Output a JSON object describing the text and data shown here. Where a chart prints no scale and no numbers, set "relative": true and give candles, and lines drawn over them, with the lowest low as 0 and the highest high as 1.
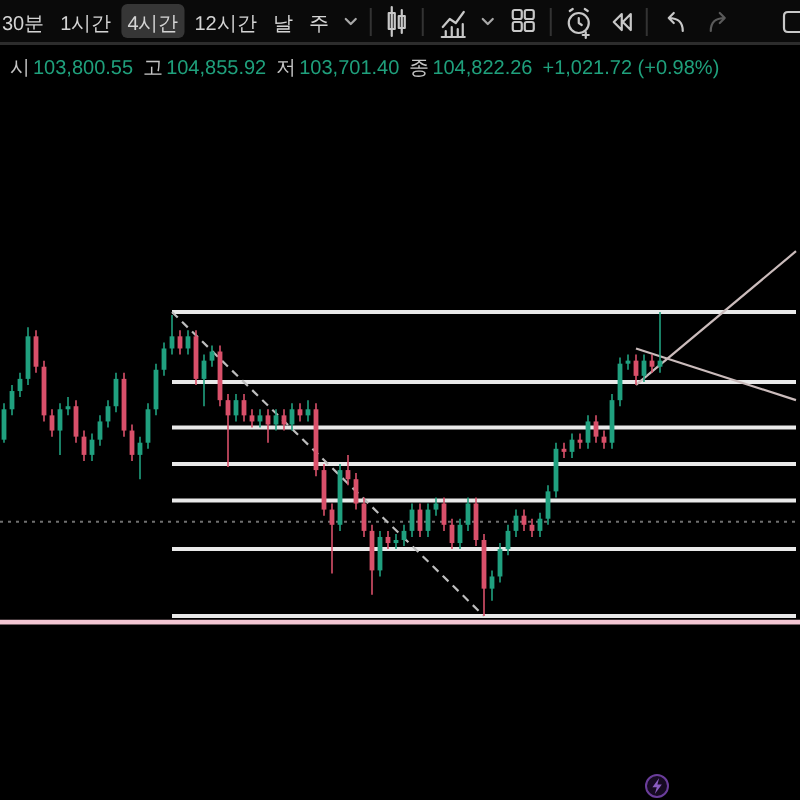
{
  "chart_data": {
    "type": "candlestick",
    "relative": true,
    "categories": [
      null,
      null,
      null,
      null,
      null,
      null,
      null,
      null,
      null,
      null,
      null,
      null,
      null,
      null,
      null,
      null,
      null,
      null,
      null,
      null,
      null,
      null,
      null,
      null,
      null,
      null,
      null,
      null,
      null,
      null,
      null,
      null,
      null,
      null,
      null,
      null,
      null,
      null,
      null,
      null,
      null,
      null,
      null,
      null,
      null,
      null,
      null,
      null,
      null,
      null,
      null,
      null,
      null,
      null,
      null,
      null,
      null,
      null,
      null,
      null,
      null,
      null,
      null,
      null,
      null,
      null,
      null,
      null,
      null,
      null,
      null,
      null,
      null,
      null,
      null,
      null,
      null,
      null,
      null,
      null,
      null,
      null,
      null,
      null,
      null,
      null,
      null,
      null,
      null,
      null,
      null,
      null,
      null,
      null,
      null,
      null,
      null,
      null,
      null,
      null
    ],
    "ohlc": [
      [
        0.58,
        0.7,
        0.57,
        0.68
      ],
      [
        0.68,
        0.76,
        0.66,
        0.74
      ],
      [
        0.74,
        0.8,
        0.72,
        0.78
      ],
      [
        0.78,
        0.95,
        0.76,
        0.92
      ],
      [
        0.92,
        0.94,
        0.8,
        0.82
      ],
      [
        0.82,
        0.84,
        0.64,
        0.66
      ],
      [
        0.66,
        0.68,
        0.59,
        0.61
      ],
      [
        0.61,
        0.7,
        0.53,
        0.68
      ],
      [
        0.68,
        0.72,
        0.66,
        0.69
      ],
      [
        0.69,
        0.71,
        0.57,
        0.59
      ],
      [
        0.59,
        0.61,
        0.51,
        0.53
      ],
      [
        0.53,
        0.6,
        0.51,
        0.58
      ],
      [
        0.58,
        0.66,
        0.56,
        0.64
      ],
      [
        0.64,
        0.71,
        0.62,
        0.69
      ],
      [
        0.69,
        0.8,
        0.67,
        0.78
      ],
      [
        0.78,
        0.8,
        0.59,
        0.61
      ],
      [
        0.61,
        0.63,
        0.51,
        0.53
      ],
      [
        0.53,
        0.59,
        0.45,
        0.57
      ],
      [
        0.57,
        0.7,
        0.55,
        0.68
      ],
      [
        0.68,
        0.83,
        0.66,
        0.81
      ],
      [
        0.81,
        0.9,
        0.79,
        0.88
      ],
      [
        0.88,
        0.99,
        0.86,
        0.92
      ],
      [
        0.92,
        0.94,
        0.86,
        0.88
      ],
      [
        0.88,
        0.94,
        0.86,
        0.92
      ],
      [
        0.92,
        0.94,
        0.76,
        0.78
      ],
      [
        0.78,
        0.86,
        0.69,
        0.84
      ],
      [
        0.84,
        0.89,
        0.82,
        0.87
      ],
      [
        0.87,
        0.89,
        0.69,
        0.71
      ],
      [
        0.71,
        0.73,
        0.49,
        0.66
      ],
      [
        0.66,
        0.73,
        0.64,
        0.71
      ],
      [
        0.71,
        0.73,
        0.64,
        0.66
      ],
      [
        0.66,
        0.68,
        0.62,
        0.64
      ],
      [
        0.64,
        0.68,
        0.62,
        0.66
      ],
      [
        0.66,
        0.68,
        0.57,
        0.63
      ],
      [
        0.63,
        0.68,
        0.61,
        0.66
      ],
      [
        0.66,
        0.68,
        0.61,
        0.63
      ],
      [
        0.63,
        0.7,
        0.61,
        0.68
      ],
      [
        0.68,
        0.7,
        0.64,
        0.66
      ],
      [
        0.66,
        0.71,
        0.64,
        0.68
      ],
      [
        0.68,
        0.7,
        0.46,
        0.48
      ],
      [
        0.48,
        0.5,
        0.33,
        0.35
      ],
      [
        0.35,
        0.37,
        0.14,
        0.3
      ],
      [
        0.3,
        0.5,
        0.28,
        0.48
      ],
      [
        0.48,
        0.53,
        0.43,
        0.45
      ],
      [
        0.45,
        0.47,
        0.35,
        0.37
      ],
      [
        0.37,
        0.39,
        0.26,
        0.28
      ],
      [
        0.28,
        0.3,
        0.07,
        0.15
      ],
      [
        0.15,
        0.28,
        0.13,
        0.26
      ],
      [
        0.26,
        0.28,
        0.22,
        0.24
      ],
      [
        0.24,
        0.27,
        0.22,
        0.25
      ],
      [
        0.25,
        0.3,
        0.23,
        0.28
      ],
      [
        0.28,
        0.37,
        0.26,
        0.35
      ],
      [
        0.35,
        0.37,
        0.26,
        0.28
      ],
      [
        0.28,
        0.37,
        0.26,
        0.35
      ],
      [
        0.35,
        0.39,
        0.33,
        0.37
      ],
      [
        0.37,
        0.39,
        0.28,
        0.3
      ],
      [
        0.3,
        0.32,
        0.22,
        0.24
      ],
      [
        0.24,
        0.32,
        0.22,
        0.3
      ],
      [
        0.3,
        0.39,
        0.28,
        0.37
      ],
      [
        0.37,
        0.39,
        0.23,
        0.25
      ],
      [
        0.25,
        0.27,
        0.0,
        0.09
      ],
      [
        0.09,
        0.15,
        0.05,
        0.13
      ],
      [
        0.13,
        0.24,
        0.11,
        0.22
      ],
      [
        0.22,
        0.3,
        0.2,
        0.28
      ],
      [
        0.28,
        0.35,
        0.26,
        0.33
      ],
      [
        0.33,
        0.35,
        0.28,
        0.3
      ],
      [
        0.3,
        0.32,
        0.26,
        0.28
      ],
      [
        0.28,
        0.34,
        0.26,
        0.32
      ],
      [
        0.32,
        0.43,
        0.3,
        0.41
      ],
      [
        0.41,
        0.57,
        0.39,
        0.55
      ],
      [
        0.55,
        0.57,
        0.52,
        0.54
      ],
      [
        0.54,
        0.6,
        0.52,
        0.58
      ],
      [
        0.58,
        0.6,
        0.55,
        0.57
      ],
      [
        0.57,
        0.66,
        0.55,
        0.64
      ],
      [
        0.64,
        0.66,
        0.57,
        0.59
      ],
      [
        0.59,
        0.61,
        0.55,
        0.57
      ],
      [
        0.57,
        0.73,
        0.55,
        0.71
      ],
      [
        0.71,
        0.85,
        0.69,
        0.83
      ],
      [
        0.83,
        0.86,
        0.81,
        0.84
      ],
      [
        0.84,
        0.86,
        0.76,
        0.79
      ],
      [
        0.79,
        0.86,
        0.77,
        0.84
      ],
      [
        0.84,
        0.86,
        0.8,
        0.82
      ],
      [
        0.82,
        1.0,
        0.8,
        0.84
      ],
      null,
      null,
      null,
      null,
      null,
      null,
      null,
      null,
      null,
      null,
      null,
      null,
      null,
      null,
      null,
      null,
      null
    ],
    "colors": [
      "#20a07f",
      "#20a07f",
      "#20a07f",
      "#20a07f",
      "#d9506a",
      "#d9506a",
      "#d9506a",
      "#20a07f",
      "#20a07f",
      "#d9506a",
      "#d9506a",
      "#20a07f",
      "#20a07f",
      "#20a07f",
      "#20a07f",
      "#d9506a",
      "#d9506a",
      "#20a07f",
      "#20a07f",
      "#20a07f",
      "#20a07f",
      "#20a07f",
      "#d9506a",
      "#20a07f",
      "#d9506a",
      "#20a07f",
      "#20a07f",
      "#d9506a",
      "#d9506a",
      "#20a07f",
      "#d9506a",
      "#d9506a",
      "#20a07f",
      "#d9506a",
      "#20a07f",
      "#d9506a",
      "#20a07f",
      "#d9506a",
      "#20a07f",
      "#d9506a",
      "#d9506a",
      "#d9506a",
      "#20a07f",
      "#d9506a",
      "#d9506a",
      "#d9506a",
      "#d9506a",
      "#20a07f",
      "#d9506a",
      "#20a07f",
      "#20a07f",
      "#20a07f",
      "#d9506a",
      "#20a07f",
      "#20a07f",
      "#d9506a",
      "#d9506a",
      "#20a07f",
      "#20a07f",
      "#d9506a",
      "#d9506a",
      "#20a07f",
      "#20a07f",
      "#20a07f",
      "#20a07f",
      "#d9506a",
      "#d9506a",
      "#20a07f",
      "#20a07f",
      "#20a07f",
      "#d9506a",
      "#20a07f",
      "#d9506a",
      "#20a07f",
      "#d9506a",
      "#d9506a",
      "#20a07f",
      "#20a07f",
      "#20a07f",
      "#d9506a",
      "#20a07f",
      "#d9506a",
      "#20a07f",
      null,
      null,
      null,
      null,
      null,
      null,
      null,
      null,
      null,
      null,
      null,
      null,
      null,
      null,
      null,
      null,
      null
    ],
    "series": [
      {
        "type": "line",
        "color": "#e9e9e9",
        "line_style": "solid",
        "values": [
          null,
          null,
          null,
          null,
          null,
          null,
          null,
          null,
          null,
          null,
          null,
          null,
          null,
          null,
          null,
          null,
          null,
          null,
          null,
          null,
          null,
          1.0,
          null,
          null,
          null,
          null,
          null,
          null,
          null,
          null,
          null,
          null,
          null,
          null,
          null,
          null,
          null,
          null,
          null,
          null,
          null,
          null,
          null,
          null,
          null,
          null,
          null,
          null,
          null,
          null,
          null,
          null,
          null,
          null,
          null,
          null,
          null,
          null,
          null,
          null,
          null,
          null,
          null,
          null,
          null,
          null,
          null,
          null,
          null,
          null,
          null,
          null,
          null,
          null,
          null,
          null,
          null,
          null,
          null,
          null,
          null,
          null,
          null,
          null,
          null,
          null,
          null,
          null,
          null,
          null,
          null,
          null,
          null,
          null,
          null,
          null,
          null,
          null,
          null,
          1.0
        ]
      },
      {
        "type": "line",
        "color": "#e9e9e9",
        "line_style": "solid",
        "values": [
          null,
          null,
          null,
          null,
          null,
          null,
          null,
          null,
          null,
          null,
          null,
          null,
          null,
          null,
          null,
          null,
          null,
          null,
          null,
          null,
          null,
          0.77,
          null,
          null,
          null,
          null,
          null,
          null,
          null,
          null,
          null,
          null,
          null,
          null,
          null,
          null,
          null,
          null,
          null,
          null,
          null,
          null,
          null,
          null,
          null,
          null,
          null,
          null,
          null,
          null,
          null,
          null,
          null,
          null,
          null,
          null,
          null,
          null,
          null,
          null,
          null,
          null,
          null,
          null,
          null,
          null,
          null,
          null,
          null,
          null,
          null,
          null,
          null,
          null,
          null,
          null,
          null,
          null,
          null,
          null,
          null,
          null,
          null,
          null,
          null,
          null,
          null,
          null,
          null,
          null,
          null,
          null,
          null,
          null,
          null,
          null,
          null,
          null,
          null,
          0.77
        ]
      },
      {
        "type": "line",
        "color": "#e9e9e9",
        "line_style": "solid",
        "values": [
          null,
          null,
          null,
          null,
          null,
          null,
          null,
          null,
          null,
          null,
          null,
          null,
          null,
          null,
          null,
          null,
          null,
          null,
          null,
          null,
          null,
          0.62,
          null,
          null,
          null,
          null,
          null,
          null,
          null,
          null,
          null,
          null,
          null,
          null,
          null,
          null,
          null,
          null,
          null,
          null,
          null,
          null,
          null,
          null,
          null,
          null,
          null,
          null,
          null,
          null,
          null,
          null,
          null,
          null,
          null,
          null,
          null,
          null,
          null,
          null,
          null,
          null,
          null,
          null,
          null,
          null,
          null,
          null,
          null,
          null,
          null,
          null,
          null,
          null,
          null,
          null,
          null,
          null,
          null,
          null,
          null,
          null,
          null,
          null,
          null,
          null,
          null,
          null,
          null,
          null,
          null,
          null,
          null,
          null,
          null,
          null,
          null,
          null,
          null,
          0.62
        ]
      },
      {
        "type": "line",
        "color": "#e9e9e9",
        "line_style": "solid",
        "values": [
          null,
          null,
          null,
          null,
          null,
          null,
          null,
          null,
          null,
          null,
          null,
          null,
          null,
          null,
          null,
          null,
          null,
          null,
          null,
          null,
          null,
          0.5,
          null,
          null,
          null,
          null,
          null,
          null,
          null,
          null,
          null,
          null,
          null,
          null,
          null,
          null,
          null,
          null,
          null,
          null,
          null,
          null,
          null,
          null,
          null,
          null,
          null,
          null,
          null,
          null,
          null,
          null,
          null,
          null,
          null,
          null,
          null,
          null,
          null,
          null,
          null,
          null,
          null,
          null,
          null,
          null,
          null,
          null,
          null,
          null,
          null,
          null,
          null,
          null,
          null,
          null,
          null,
          null,
          null,
          null,
          null,
          null,
          null,
          null,
          null,
          null,
          null,
          null,
          null,
          null,
          null,
          null,
          null,
          null,
          null,
          null,
          null,
          null,
          null,
          0.5
        ]
      },
      {
        "type": "line",
        "color": "#e9e9e9",
        "line_style": "solid",
        "values": [
          null,
          null,
          null,
          null,
          null,
          null,
          null,
          null,
          null,
          null,
          null,
          null,
          null,
          null,
          null,
          null,
          null,
          null,
          null,
          null,
          null,
          0.38,
          null,
          null,
          null,
          null,
          null,
          null,
          null,
          null,
          null,
          null,
          null,
          null,
          null,
          null,
          null,
          null,
          null,
          null,
          null,
          null,
          null,
          null,
          null,
          null,
          null,
          null,
          null,
          null,
          null,
          null,
          null,
          null,
          null,
          null,
          null,
          null,
          null,
          null,
          null,
          null,
          null,
          null,
          null,
          null,
          null,
          null,
          null,
          null,
          null,
          null,
          null,
          null,
          null,
          null,
          null,
          null,
          null,
          null,
          null,
          null,
          null,
          null,
          null,
          null,
          null,
          null,
          null,
          null,
          null,
          null,
          null,
          null,
          null,
          null,
          null,
          null,
          null,
          0.38
        ]
      },
      {
        "type": "line",
        "color": "#e9e9e9",
        "line_style": "solid",
        "values": [
          null,
          null,
          null,
          null,
          null,
          null,
          null,
          null,
          null,
          null,
          null,
          null,
          null,
          null,
          null,
          null,
          null,
          null,
          null,
          null,
          null,
          0.22,
          null,
          null,
          null,
          null,
          null,
          null,
          null,
          null,
          null,
          null,
          null,
          null,
          null,
          null,
          null,
          null,
          null,
          null,
          null,
          null,
          null,
          null,
          null,
          null,
          null,
          null,
          null,
          null,
          null,
          null,
          null,
          null,
          null,
          null,
          null,
          null,
          null,
          null,
          null,
          null,
          null,
          null,
          null,
          null,
          null,
          null,
          null,
          null,
          null,
          null,
          null,
          null,
          null,
          null,
          null,
          null,
          null,
          null,
          null,
          null,
          null,
          null,
          null,
          null,
          null,
          null,
          null,
          null,
          null,
          null,
          null,
          null,
          null,
          null,
          null,
          null,
          null,
          0.22
        ]
      },
      {
        "type": "line",
        "color": "#e9e9e9",
        "line_style": "solid",
        "values": [
          null,
          null,
          null,
          null,
          null,
          null,
          null,
          null,
          null,
          null,
          null,
          null,
          null,
          null,
          null,
          null,
          null,
          null,
          null,
          null,
          null,
          0.0,
          null,
          null,
          null,
          null,
          null,
          null,
          null,
          null,
          null,
          null,
          null,
          null,
          null,
          null,
          null,
          null,
          null,
          null,
          null,
          null,
          null,
          null,
          null,
          null,
          null,
          null,
          null,
          null,
          null,
          null,
          null,
          null,
          null,
          null,
          null,
          null,
          null,
          null,
          null,
          null,
          null,
          null,
          null,
          null,
          null,
          null,
          null,
          null,
          null,
          null,
          null,
          null,
          null,
          null,
          null,
          null,
          null,
          null,
          null,
          null,
          null,
          null,
          null,
          null,
          null,
          null,
          null,
          null,
          null,
          null,
          null,
          null,
          null,
          null,
          null,
          null,
          null,
          0.0
        ]
      },
      {
        "type": "line",
        "color": "#bdbdbd",
        "line_style": "dashed",
        "values": [
          null,
          null,
          null,
          null,
          null,
          null,
          null,
          null,
          null,
          null,
          null,
          null,
          null,
          null,
          null,
          null,
          null,
          null,
          null,
          null,
          null,
          1.0,
          null,
          null,
          null,
          null,
          null,
          null,
          null,
          null,
          null,
          null,
          null,
          null,
          null,
          null,
          null,
          null,
          null,
          null,
          null,
          null,
          null,
          null,
          null,
          null,
          null,
          null,
          null,
          null,
          null,
          null,
          null,
          null,
          null,
          null,
          null,
          null,
          null,
          null,
          0.0,
          null,
          null,
          null,
          null,
          null,
          null,
          null,
          null,
          null,
          null,
          null,
          null,
          null,
          null,
          null,
          null,
          null,
          null,
          null,
          null,
          null,
          null,
          null,
          null,
          null,
          null,
          null,
          null,
          null,
          null,
          null,
          null,
          null,
          null,
          null,
          null,
          null,
          null,
          null
        ]
      },
      {
        "type": "line",
        "color": "#cbbcbc",
        "line_style": "solid",
        "values": [
          null,
          null,
          null,
          null,
          null,
          null,
          null,
          null,
          null,
          null,
          null,
          null,
          null,
          null,
          null,
          null,
          null,
          null,
          null,
          null,
          null,
          null,
          null,
          null,
          null,
          null,
          null,
          null,
          null,
          null,
          null,
          null,
          null,
          null,
          null,
          null,
          null,
          null,
          null,
          null,
          null,
          null,
          null,
          null,
          null,
          null,
          null,
          null,
          null,
          null,
          null,
          null,
          null,
          null,
          null,
          null,
          null,
          null,
          null,
          null,
          null,
          null,
          null,
          null,
          null,
          null,
          null,
          null,
          null,
          null,
          null,
          null,
          null,
          null,
          null,
          null,
          null,
          null,
          null,
          0.76,
          null,
          null,
          null,
          null,
          null,
          null,
          null,
          null,
          null,
          null,
          null,
          null,
          null,
          null,
          null,
          null,
          null,
          null,
          null,
          1.2
        ]
      },
      {
        "type": "line",
        "color": "#cbbcbc",
        "line_style": "solid",
        "values": [
          null,
          null,
          null,
          null,
          null,
          null,
          null,
          null,
          null,
          null,
          null,
          null,
          null,
          null,
          null,
          null,
          null,
          null,
          null,
          null,
          null,
          null,
          null,
          null,
          null,
          null,
          null,
          null,
          null,
          null,
          null,
          null,
          null,
          null,
          null,
          null,
          null,
          null,
          null,
          null,
          null,
          null,
          null,
          null,
          null,
          null,
          null,
          null,
          null,
          null,
          null,
          null,
          null,
          null,
          null,
          null,
          null,
          null,
          null,
          null,
          null,
          null,
          null,
          null,
          null,
          null,
          null,
          null,
          null,
          null,
          null,
          null,
          null,
          null,
          null,
          null,
          null,
          null,
          null,
          0.88,
          null,
          null,
          null,
          null,
          null,
          null,
          null,
          null,
          null,
          null,
          null,
          null,
          null,
          null,
          null,
          null,
          null,
          null,
          null,
          0.71
        ]
      }
    ],
    "ref_lines": [
      {
        "axis": "y",
        "value": 0.31,
        "color": "#707070",
        "line_style": "dotted"
      },
      {
        "axis": "y",
        "value": -0.02,
        "color": "#f3c6d3",
        "line_style": "solid"
      }
    ],
    "annotations": [
      "30분",
      "1시간",
      "4시간",
      "12시간",
      "날",
      "주",
      "시",
      "103,800.55",
      "고",
      "104,855.92",
      "저",
      "103,701.40",
      "종",
      "104,822.26",
      "+1,021.72 (+0.98%)"
    ]
  }
}
